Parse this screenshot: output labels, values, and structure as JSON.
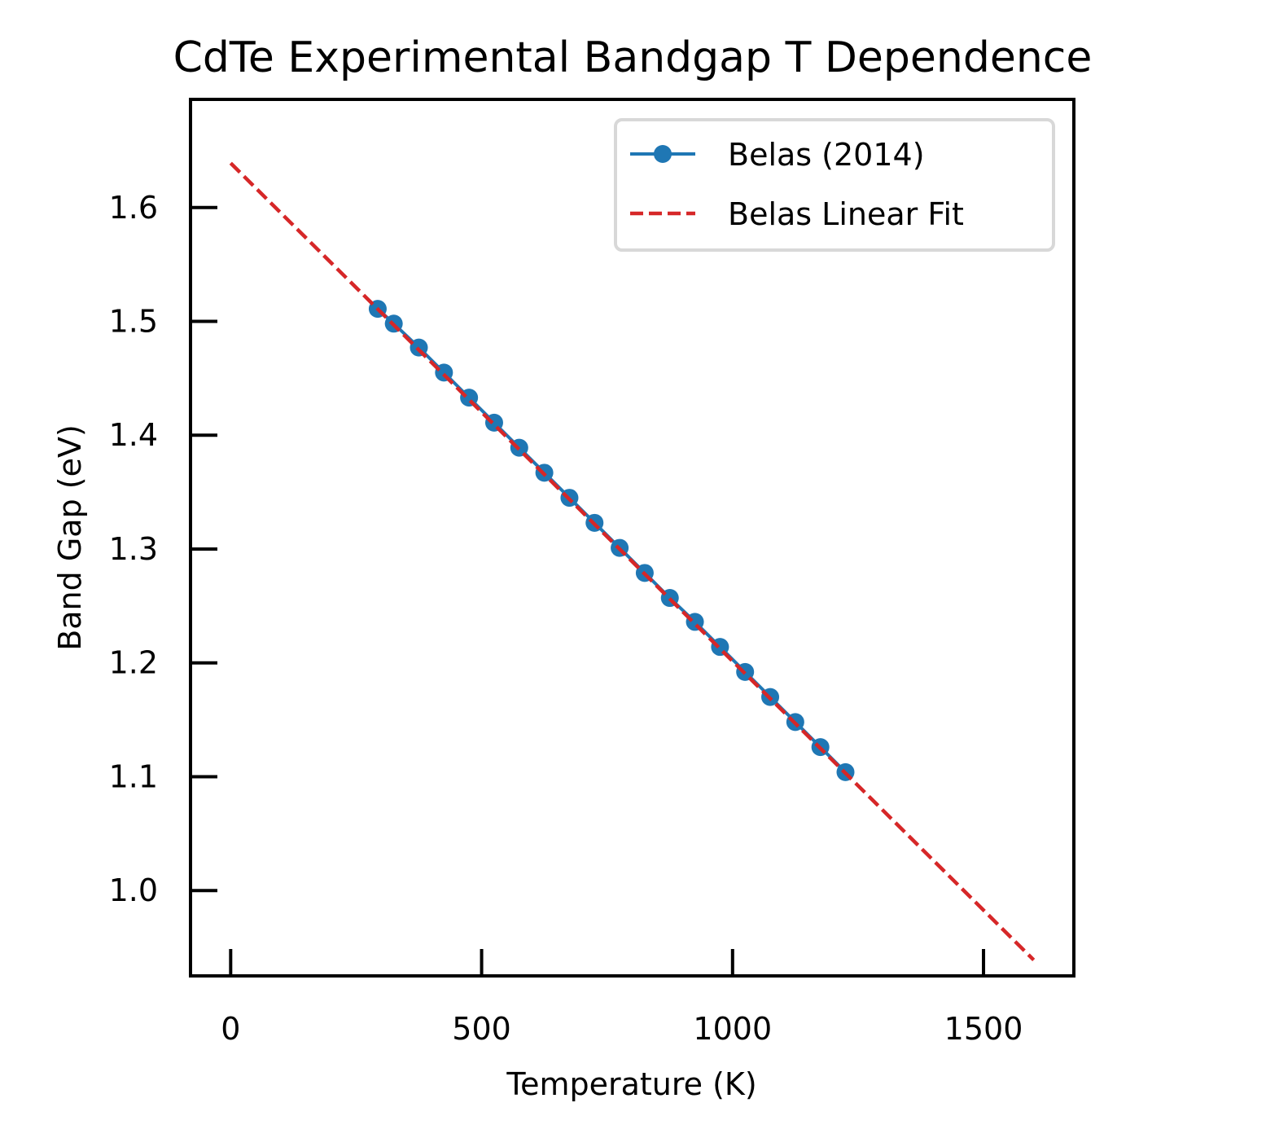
{
  "chart_data": {
    "type": "line",
    "title": "CdTe Experimental Bandgap T Dependence",
    "xlabel": "Temperature (K)",
    "ylabel": "Band Gap (eV)",
    "xlim": [
      -80,
      1680
    ],
    "ylim": [
      0.925,
      1.695
    ],
    "xticks": [
      0,
      500,
      1000,
      1500
    ],
    "xtick_labels": [
      "0",
      "500",
      "1000",
      "1500"
    ],
    "yticks": [
      1.0,
      1.1,
      1.2,
      1.3,
      1.4,
      1.5,
      1.6
    ],
    "ytick_labels": [
      "1.0",
      "1.1",
      "1.2",
      "1.3",
      "1.4",
      "1.5",
      "1.6"
    ],
    "grid": false,
    "legend_position": "upper right",
    "series": [
      {
        "name": "Belas (2014)",
        "style": "line-with-markers",
        "color": "#1f77b4",
        "x": [
          293,
          325,
          375,
          425,
          475,
          525,
          575,
          625,
          675,
          725,
          775,
          825,
          875,
          925,
          975,
          1025,
          1075,
          1125,
          1175,
          1225
        ],
        "y": [
          1.511,
          1.498,
          1.477,
          1.455,
          1.433,
          1.411,
          1.389,
          1.367,
          1.345,
          1.323,
          1.301,
          1.279,
          1.257,
          1.236,
          1.214,
          1.192,
          1.17,
          1.148,
          1.126,
          1.104
        ]
      },
      {
        "name": "Belas Linear Fit",
        "style": "dashed",
        "color": "#d62728",
        "x": [
          0,
          1600
        ],
        "y": [
          1.639,
          0.939
        ]
      }
    ]
  }
}
